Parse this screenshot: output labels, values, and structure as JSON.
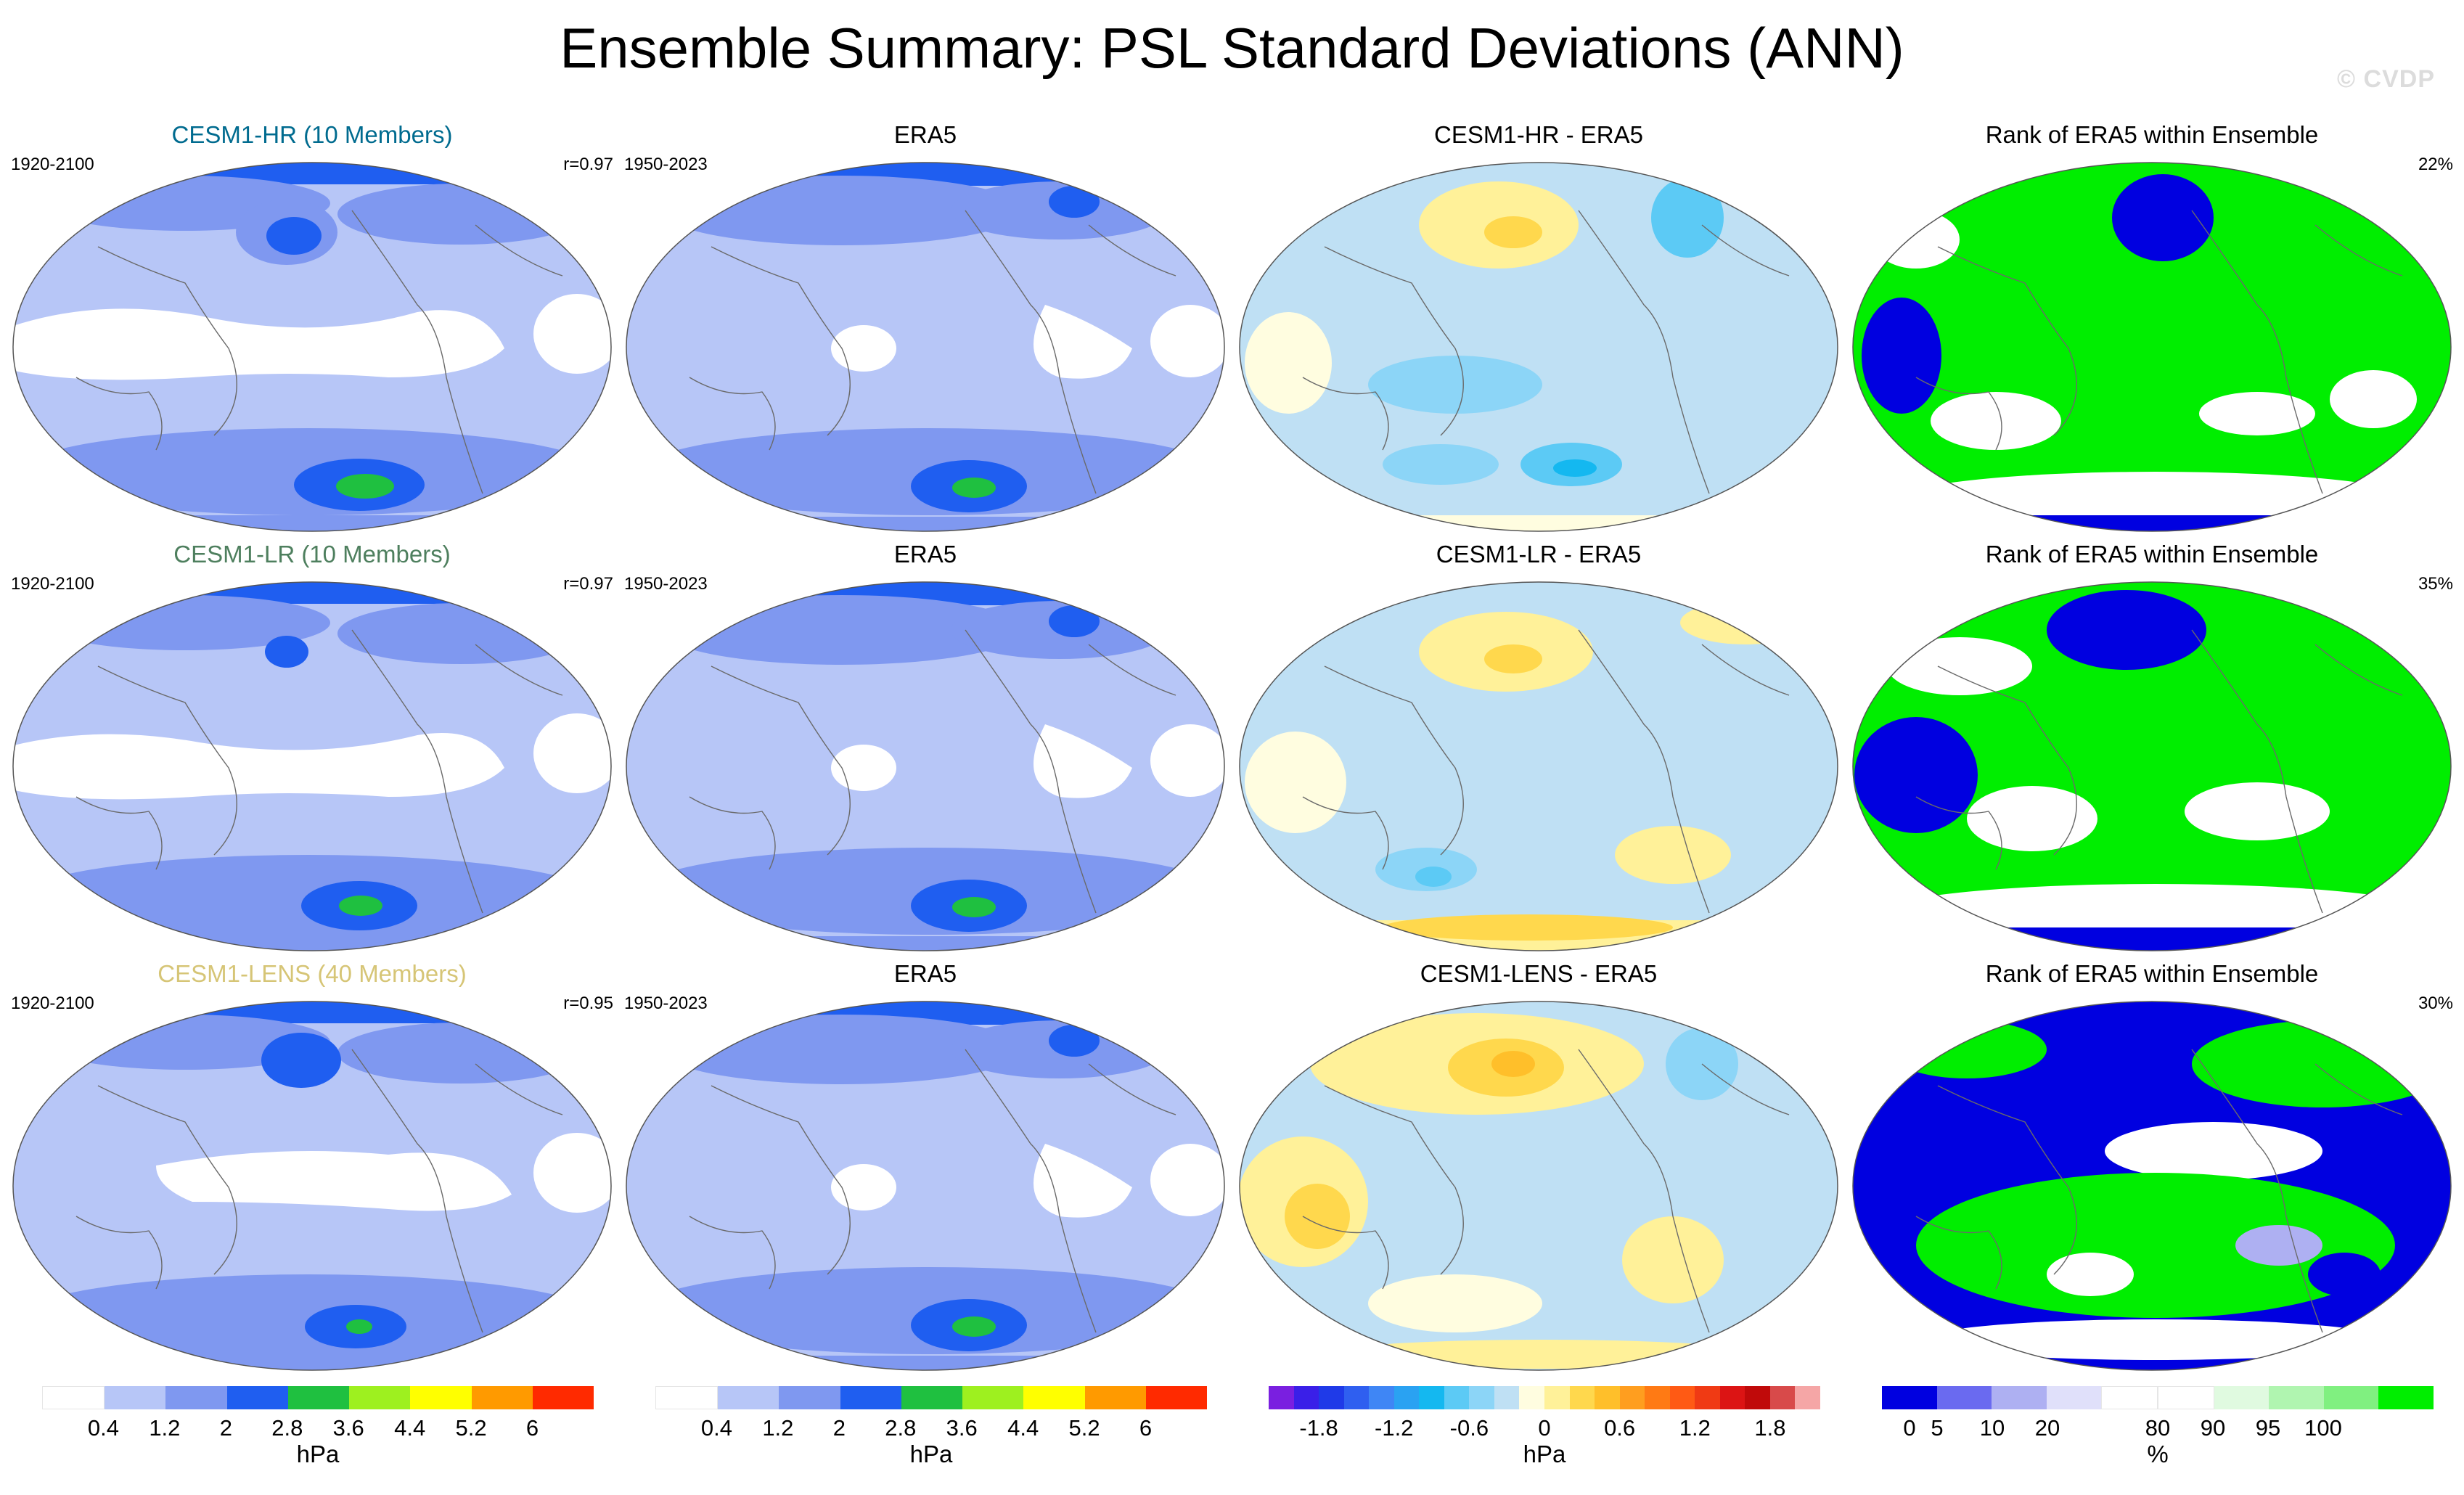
{
  "figure": {
    "title": "Ensemble Summary: PSL Standard Deviations (ANN)",
    "watermark": "© CVDP"
  },
  "colors": {
    "model_hr": "#006b8f",
    "model_lr": "#4e7f5e",
    "model_lens": "#d6c576",
    "ocean_diff_base": "#bfe0f4",
    "coast": "#6a6a6a"
  },
  "rows": [
    {
      "model": {
        "title": "CESM1-HR (10 Members)",
        "color_key": "model_hr",
        "left": "1920-2100",
        "right": "r=0.97"
      },
      "obs": {
        "title": "ERA5",
        "left": "1950-2023"
      },
      "diff": {
        "title": "CESM1-HR - ERA5"
      },
      "rank": {
        "title": "Rank of ERA5 within Ensemble",
        "right": "22%"
      }
    },
    {
      "model": {
        "title": "CESM1-LR (10 Members)",
        "color_key": "model_lr",
        "left": "1920-2100",
        "right": "r=0.97"
      },
      "obs": {
        "title": "ERA5",
        "left": "1950-2023"
      },
      "diff": {
        "title": "CESM1-LR - ERA5"
      },
      "rank": {
        "title": "Rank of ERA5 within Ensemble",
        "right": "35%"
      }
    },
    {
      "model": {
        "title": "CESM1-LENS (40 Members)",
        "color_key": "model_lens",
        "left": "1920-2100",
        "right": "r=0.95"
      },
      "obs": {
        "title": "ERA5",
        "left": "1950-2023"
      },
      "diff": {
        "title": "CESM1-LENS - ERA5"
      },
      "rank": {
        "title": "Rank of ERA5 within Ensemble",
        "right": "30%"
      }
    }
  ],
  "colorbars": [
    {
      "unit": "hPa",
      "ticks": [
        "0.4",
        "1.2",
        "2",
        "2.8",
        "3.6",
        "4.4",
        "5.2",
        "6"
      ],
      "tick_bounds": [
        1,
        2,
        3,
        4,
        5,
        6,
        7,
        8
      ],
      "colors": [
        "#ffffff",
        "#b7c6f7",
        "#7f98f0",
        "#1f5ef0",
        "#1fc040",
        "#9ef01f",
        "#ffff00",
        "#ff9a00",
        "#ff2a00"
      ]
    },
    {
      "unit": "hPa",
      "ticks": [
        "0.4",
        "1.2",
        "2",
        "2.8",
        "3.6",
        "4.4",
        "5.2",
        "6"
      ],
      "tick_bounds": [
        1,
        2,
        3,
        4,
        5,
        6,
        7,
        8
      ],
      "colors": [
        "#ffffff",
        "#b7c6f7",
        "#7f98f0",
        "#1f5ef0",
        "#1fc040",
        "#9ef01f",
        "#ffff00",
        "#ff9a00",
        "#ff2a00"
      ]
    },
    {
      "unit": "hPa",
      "ticks": [
        "-1.8",
        "-1.2",
        "-0.6",
        "0",
        "0.6",
        "1.2",
        "1.8"
      ],
      "tick_bounds": [
        2,
        5,
        8,
        11,
        14,
        17,
        20
      ],
      "colors": [
        "#7a1fe0",
        "#3a1fe8",
        "#1f3ae8",
        "#2f5ff0",
        "#3f86f5",
        "#2aa2f2",
        "#14b8f0",
        "#5ccaf5",
        "#8cd5f7",
        "#bfe0f4",
        "#fffde0",
        "#fff199",
        "#ffd84d",
        "#ffbf2a",
        "#ff9e1f",
        "#ff7a14",
        "#ff5a14",
        "#f03a14",
        "#dc1414",
        "#c00a0a",
        "#d84a4a",
        "#f5a6a6"
      ]
    },
    {
      "unit": "%",
      "ticks": [
        "0",
        "5",
        "10",
        "20",
        "80",
        "90",
        "95",
        "100"
      ],
      "tick_bounds": [
        0.5,
        1,
        2,
        3,
        5,
        6,
        7,
        8
      ],
      "colors": [
        "#0000e0",
        "#6a6af0",
        "#aeb0f2",
        "#e0e0fa",
        "#ffffff",
        "#ffffff",
        "#e0fae0",
        "#b0f5b0",
        "#80f080",
        "#00ee00"
      ]
    }
  ]
}
